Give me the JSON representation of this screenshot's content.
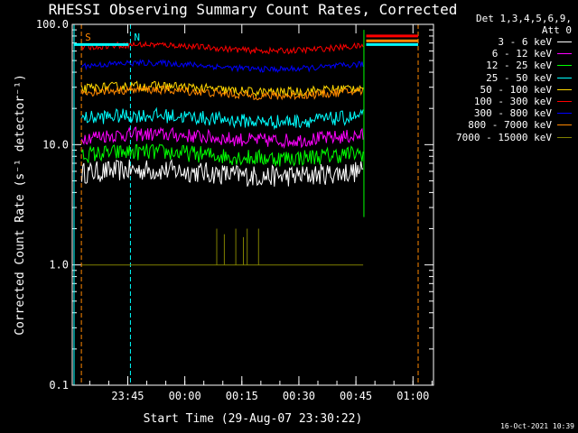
{
  "chart_data": {
    "type": "line",
    "title": "RHESSI Observing Summary Count Rates, Corrected",
    "xlabel": "Start Time (29-Aug-07 23:30:22)",
    "ylabel": "Corrected Count Rate (s⁻¹ detector⁻¹)",
    "yscale": "log",
    "ylim": [
      0.1,
      100
    ],
    "yticks": [
      "0.1",
      "1.0",
      "10.0",
      "100.0"
    ],
    "xlim_minutes": [
      0,
      95
    ],
    "xticks": [
      {
        "label": "23:45",
        "min": 14.6
      },
      {
        "label": "00:00",
        "min": 29.6
      },
      {
        "label": "00:15",
        "min": 44.6
      },
      {
        "label": "00:30",
        "min": 59.6
      },
      {
        "label": "00:45",
        "min": 74.6
      },
      {
        "label": "01:00",
        "min": 89.6
      }
    ],
    "data_end_min": 76.5,
    "legend_header": [
      "Det 1,3,4,5,6,9,",
      "Att 0"
    ],
    "series": [
      {
        "name": "3 - 6 keV",
        "color": "#ffffff",
        "level": 5.8,
        "noise": 0.09
      },
      {
        "name": "6 - 12 keV",
        "color": "#ff00ff",
        "level": 11.5,
        "noise": 0.06
      },
      {
        "name": "12 - 25 keV",
        "color": "#00ff00",
        "level": 8.2,
        "noise": 0.07
      },
      {
        "name": "25 - 50 keV",
        "color": "#00ffff",
        "level": 16.5,
        "noise": 0.06
      },
      {
        "name": "50 - 100 keV",
        "color": "#ffd700",
        "level": 29.0,
        "noise": 0.04
      },
      {
        "name": "100 - 300 keV",
        "color": "#ff0000",
        "level": 64.0,
        "noise": 0.025
      },
      {
        "name": "300 - 800 keV",
        "color": "#0000ff",
        "level": 45.0,
        "noise": 0.025
      },
      {
        "name": "800 - 7000 keV",
        "color": "#ff8800",
        "level": 27.0,
        "noise": 0.035
      },
      {
        "name": "7000 - 15000 keV",
        "color": "#808000",
        "level": 1.0,
        "noise": 0.0
      }
    ],
    "markers": [
      {
        "label": "S",
        "color": "#ff8800",
        "min": 2.4
      },
      {
        "label": "N",
        "color": "#00ffff",
        "min": 15.3
      }
    ],
    "footer_date": "16-Oct-2021 10:39"
  }
}
